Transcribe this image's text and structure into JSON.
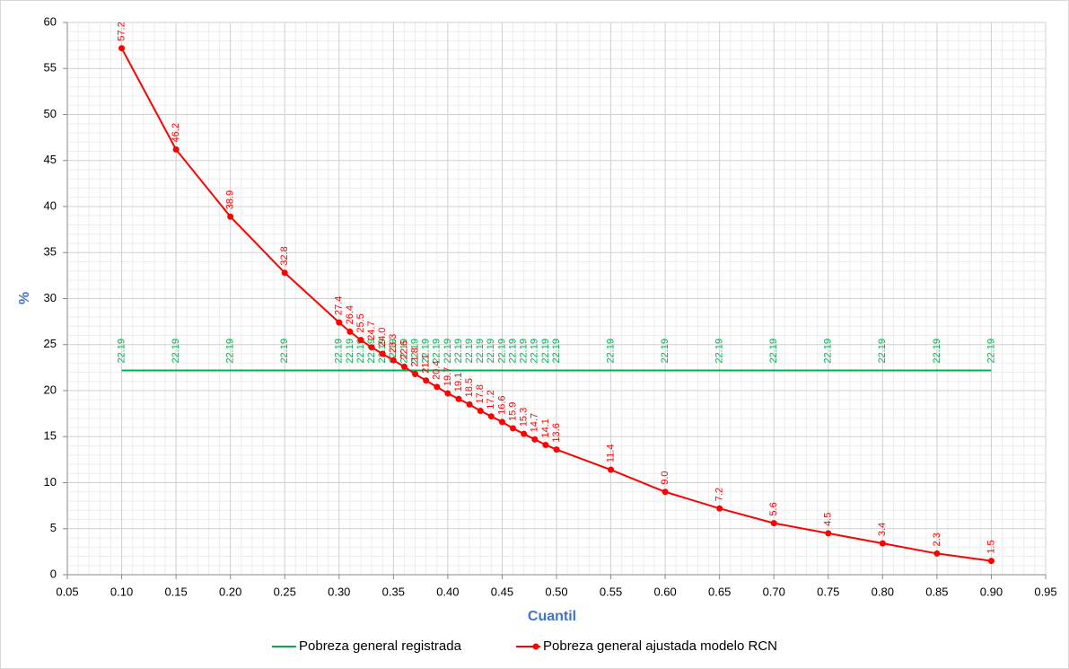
{
  "chart_data": {
    "type": "line",
    "x_label": "Cuantil",
    "y_label": "%",
    "x": [
      0.1,
      0.15,
      0.2,
      0.25,
      0.3,
      0.31,
      0.32,
      0.33,
      0.34,
      0.35,
      0.36,
      0.37,
      0.38,
      0.39,
      0.4,
      0.41,
      0.42,
      0.43,
      0.44,
      0.45,
      0.46,
      0.47,
      0.48,
      0.49,
      0.5,
      0.55,
      0.6,
      0.65,
      0.7,
      0.75,
      0.8,
      0.85,
      0.9
    ],
    "series": [
      {
        "name": "Pobreza general registrada",
        "color": "#00b050",
        "marker": false,
        "values": [
          22.19,
          22.19,
          22.19,
          22.19,
          22.19,
          22.19,
          22.19,
          22.19,
          22.19,
          22.19,
          22.19,
          22.19,
          22.19,
          22.19,
          22.19,
          22.19,
          22.19,
          22.19,
          22.19,
          22.19,
          22.19,
          22.19,
          22.19,
          22.19,
          22.19,
          22.19,
          22.19,
          22.19,
          22.19,
          22.19,
          22.19,
          22.19,
          22.19
        ]
      },
      {
        "name": "Pobreza general ajustada modelo RCN",
        "color": "#ff0000",
        "marker": true,
        "values": [
          57.2,
          46.2,
          38.9,
          32.8,
          27.4,
          26.4,
          25.5,
          24.7,
          24.0,
          23.3,
          22.6,
          21.8,
          21.1,
          20.4,
          19.7,
          19.1,
          18.5,
          17.8,
          17.2,
          16.6,
          15.9,
          15.3,
          14.7,
          14.1,
          13.6,
          11.4,
          9.0,
          7.2,
          5.6,
          4.5,
          3.4,
          2.3,
          1.5
        ],
        "value_labels": [
          "57.2",
          "46.2",
          "38.9",
          "32.8",
          "27.4",
          "26.4",
          "25.5",
          "24.7",
          "24.0",
          "23.3",
          "22.6",
          "21.8",
          "21.1",
          "20.4",
          "19.7",
          "19.1",
          "18.5",
          "17.8",
          "17.2",
          "16.6",
          "15.9",
          "15.3",
          "14.7",
          "14.1",
          "13.6",
          "11.4",
          "9.0",
          "7.2",
          "5.6",
          "4.5",
          "3.4",
          "2.3",
          "1.5"
        ]
      }
    ],
    "xlim": [
      0.05,
      0.95
    ],
    "xticks": [
      {
        "value": 0.05,
        "label": "0.05"
      },
      {
        "value": 0.1,
        "label": "0.10"
      },
      {
        "value": 0.15,
        "label": "0.15"
      },
      {
        "value": 0.2,
        "label": "0.20"
      },
      {
        "value": 0.25,
        "label": "0.25"
      },
      {
        "value": 0.3,
        "label": "0.30"
      },
      {
        "value": 0.35,
        "label": "0.35"
      },
      {
        "value": 0.4,
        "label": "0.40"
      },
      {
        "value": 0.45,
        "label": "0.45"
      },
      {
        "value": 0.5,
        "label": "0.50"
      },
      {
        "value": 0.55,
        "label": "0.55"
      },
      {
        "value": 0.6,
        "label": "0.60"
      },
      {
        "value": 0.65,
        "label": "0.65"
      },
      {
        "value": 0.7,
        "label": "0.70"
      },
      {
        "value": 0.75,
        "label": "0.75"
      },
      {
        "value": 0.8,
        "label": "0.80"
      },
      {
        "value": 0.85,
        "label": "0.85"
      },
      {
        "value": 0.9,
        "label": "0.90"
      },
      {
        "value": 0.95,
        "label": "0.95"
      }
    ],
    "ylim": [
      0,
      60
    ],
    "yticks": [
      0,
      5,
      10,
      15,
      20,
      25,
      30,
      35,
      40,
      45,
      50,
      55,
      60
    ],
    "grid": true,
    "minor_grid": true,
    "legend": "bottom"
  }
}
